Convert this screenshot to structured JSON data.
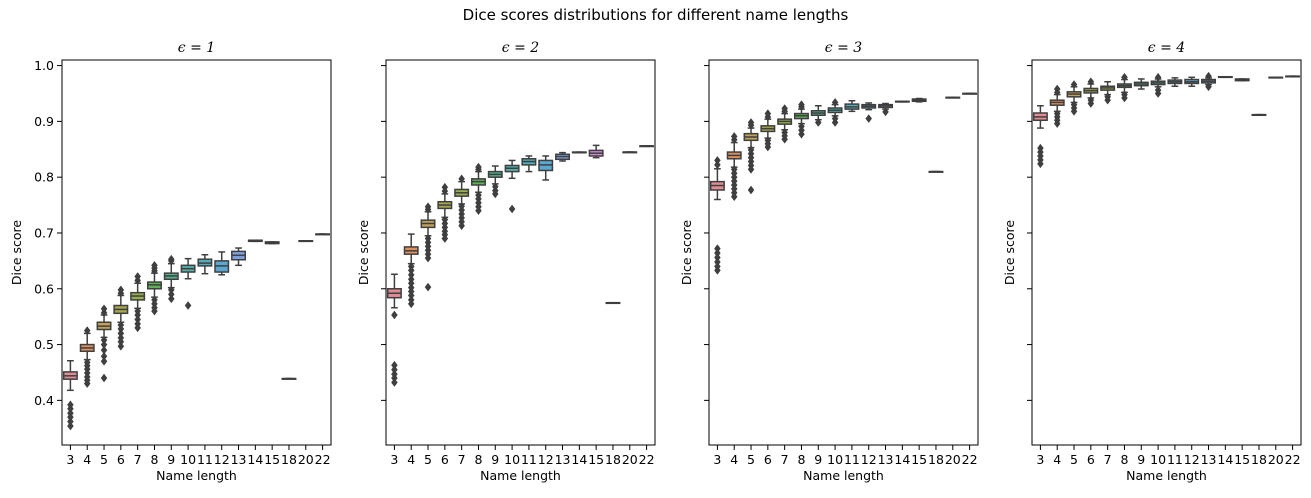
{
  "figure": {
    "suptitle": "Dice scores distributions for different name lengths"
  },
  "chart_data": [
    {
      "type": "box",
      "title": "ϵ = 1",
      "xlabel": "Name length",
      "ylabel": "Dice score",
      "ylim": [
        0.32,
        1.01
      ],
      "yticks": [
        0.4,
        0.5,
        0.6,
        0.7,
        0.8,
        0.9,
        1.0
      ],
      "ytick_labels": [
        "0.4",
        "0.5",
        "0.6",
        "0.7",
        "0.8",
        "0.9",
        "1.0"
      ],
      "show_ytick_labels": true,
      "categories": [
        "3",
        "4",
        "5",
        "6",
        "7",
        "8",
        "9",
        "10",
        "11",
        "12",
        "13",
        "14",
        "15",
        "18",
        "20",
        "22"
      ],
      "boxes": [
        {
          "q1": 0.438,
          "median": 0.444,
          "q3": 0.451,
          "low": 0.418,
          "high": 0.471,
          "outliers": [
            0.392,
            0.385,
            0.377,
            0.37,
            0.362,
            0.354
          ]
        },
        {
          "q1": 0.488,
          "median": 0.494,
          "q3": 0.5,
          "low": 0.473,
          "high": 0.52,
          "outliers": [
            0.468,
            0.462,
            0.456,
            0.449,
            0.442,
            0.436,
            0.43,
            0.525
          ]
        },
        {
          "q1": 0.527,
          "median": 0.533,
          "q3": 0.54,
          "low": 0.513,
          "high": 0.553,
          "outliers": [
            0.508,
            0.5,
            0.49,
            0.479,
            0.47,
            0.44,
            0.557,
            0.564
          ]
        },
        {
          "q1": 0.556,
          "median": 0.563,
          "q3": 0.57,
          "low": 0.54,
          "high": 0.588,
          "outliers": [
            0.535,
            0.528,
            0.52,
            0.512,
            0.505,
            0.497,
            0.592,
            0.598
          ]
        },
        {
          "q1": 0.58,
          "median": 0.587,
          "q3": 0.593,
          "low": 0.565,
          "high": 0.61,
          "outliers": [
            0.56,
            0.553,
            0.545,
            0.537,
            0.53,
            0.615,
            0.622
          ]
        },
        {
          "q1": 0.6,
          "median": 0.607,
          "q3": 0.612,
          "low": 0.585,
          "high": 0.628,
          "outliers": [
            0.58,
            0.573,
            0.566,
            0.56,
            0.632,
            0.637,
            0.642
          ]
        },
        {
          "q1": 0.617,
          "median": 0.623,
          "q3": 0.628,
          "low": 0.602,
          "high": 0.645,
          "outliers": [
            0.598,
            0.59,
            0.582,
            0.65,
            0.653
          ]
        },
        {
          "q1": 0.63,
          "median": 0.636,
          "q3": 0.642,
          "low": 0.618,
          "high": 0.654,
          "outliers": [
            0.57
          ]
        },
        {
          "q1": 0.641,
          "median": 0.646,
          "q3": 0.653,
          "low": 0.627,
          "high": 0.661,
          "outliers": []
        },
        {
          "q1": 0.63,
          "median": 0.641,
          "q3": 0.65,
          "low": 0.625,
          "high": 0.666,
          "outliers": []
        },
        {
          "q1": 0.652,
          "median": 0.66,
          "q3": 0.667,
          "low": 0.642,
          "high": 0.673,
          "outliers": []
        },
        {
          "q1": 0.685,
          "median": 0.686,
          "q3": 0.687,
          "low": 0.685,
          "high": 0.687,
          "outliers": []
        },
        {
          "q1": 0.681,
          "median": 0.682,
          "q3": 0.684,
          "low": 0.681,
          "high": 0.684,
          "outliers": []
        },
        {
          "q1": 0.439,
          "median": 0.439,
          "q3": 0.439,
          "low": 0.439,
          "high": 0.439,
          "outliers": []
        },
        {
          "q1": 0.686,
          "median": 0.686,
          "q3": 0.686,
          "low": 0.686,
          "high": 0.686,
          "outliers": []
        },
        {
          "q1": 0.698,
          "median": 0.698,
          "q3": 0.698,
          "low": 0.698,
          "high": 0.698,
          "outliers": []
        }
      ]
    },
    {
      "type": "box",
      "title": "ϵ = 2",
      "xlabel": "Name length",
      "ylabel": "Dice score",
      "ylim": [
        0.32,
        1.01
      ],
      "yticks": [
        0.4,
        0.5,
        0.6,
        0.7,
        0.8,
        0.9,
        1.0
      ],
      "ytick_labels": [
        "0.4",
        "0.5",
        "0.6",
        "0.7",
        "0.8",
        "0.9",
        "1.0"
      ],
      "show_ytick_labels": false,
      "categories": [
        "3",
        "4",
        "5",
        "6",
        "7",
        "8",
        "9",
        "10",
        "11",
        "12",
        "13",
        "14",
        "15",
        "18",
        "20",
        "22"
      ],
      "boxes": [
        {
          "q1": 0.584,
          "median": 0.592,
          "q3": 0.6,
          "low": 0.566,
          "high": 0.626,
          "outliers": [
            0.553,
            0.463,
            0.455,
            0.447,
            0.44,
            0.432
          ]
        },
        {
          "q1": 0.662,
          "median": 0.668,
          "q3": 0.675,
          "low": 0.645,
          "high": 0.698,
          "outliers": [
            0.64,
            0.633,
            0.625,
            0.617,
            0.61,
            0.602,
            0.595,
            0.588,
            0.58,
            0.573
          ]
        },
        {
          "q1": 0.71,
          "median": 0.717,
          "q3": 0.723,
          "low": 0.695,
          "high": 0.738,
          "outliers": [
            0.69,
            0.683,
            0.676,
            0.669,
            0.662,
            0.655,
            0.603,
            0.742,
            0.747
          ]
        },
        {
          "q1": 0.744,
          "median": 0.75,
          "q3": 0.756,
          "low": 0.728,
          "high": 0.77,
          "outliers": [
            0.724,
            0.717,
            0.71,
            0.703,
            0.697,
            0.69,
            0.775,
            0.782
          ]
        },
        {
          "q1": 0.766,
          "median": 0.772,
          "q3": 0.778,
          "low": 0.752,
          "high": 0.792,
          "outliers": [
            0.748,
            0.741,
            0.734,
            0.727,
            0.72,
            0.713,
            0.797
          ]
        },
        {
          "q1": 0.786,
          "median": 0.792,
          "q3": 0.797,
          "low": 0.773,
          "high": 0.81,
          "outliers": [
            0.768,
            0.761,
            0.754,
            0.747,
            0.74,
            0.814,
            0.818
          ]
        },
        {
          "q1": 0.8,
          "median": 0.805,
          "q3": 0.81,
          "low": 0.788,
          "high": 0.82,
          "outliers": [
            0.783,
            0.776,
            0.77
          ]
        },
        {
          "q1": 0.81,
          "median": 0.816,
          "q3": 0.821,
          "low": 0.798,
          "high": 0.83,
          "outliers": [
            0.743
          ]
        },
        {
          "q1": 0.822,
          "median": 0.828,
          "q3": 0.833,
          "low": 0.81,
          "high": 0.838,
          "outliers": []
        },
        {
          "q1": 0.812,
          "median": 0.822,
          "q3": 0.83,
          "low": 0.795,
          "high": 0.838,
          "outliers": []
        },
        {
          "q1": 0.832,
          "median": 0.837,
          "q3": 0.841,
          "low": 0.829,
          "high": 0.844,
          "outliers": []
        },
        {
          "q1": 0.844,
          "median": 0.844,
          "q3": 0.845,
          "low": 0.844,
          "high": 0.845,
          "outliers": []
        },
        {
          "q1": 0.838,
          "median": 0.843,
          "q3": 0.848,
          "low": 0.835,
          "high": 0.857,
          "outliers": []
        },
        {
          "q1": 0.575,
          "median": 0.575,
          "q3": 0.575,
          "low": 0.575,
          "high": 0.575,
          "outliers": []
        },
        {
          "q1": 0.845,
          "median": 0.845,
          "q3": 0.845,
          "low": 0.845,
          "high": 0.845,
          "outliers": []
        },
        {
          "q1": 0.856,
          "median": 0.856,
          "q3": 0.856,
          "low": 0.856,
          "high": 0.856,
          "outliers": []
        }
      ]
    },
    {
      "type": "box",
      "title": "ϵ = 3",
      "xlabel": "Name length",
      "ylabel": "Dice score",
      "ylim": [
        0.32,
        1.01
      ],
      "yticks": [
        0.4,
        0.5,
        0.6,
        0.7,
        0.8,
        0.9,
        1.0
      ],
      "ytick_labels": [
        "0.4",
        "0.5",
        "0.6",
        "0.7",
        "0.8",
        "0.9",
        "1.0"
      ],
      "show_ytick_labels": false,
      "categories": [
        "3",
        "4",
        "5",
        "6",
        "7",
        "8",
        "9",
        "10",
        "11",
        "12",
        "13",
        "14",
        "15",
        "18",
        "20",
        "22"
      ],
      "boxes": [
        {
          "q1": 0.777,
          "median": 0.785,
          "q3": 0.792,
          "low": 0.76,
          "high": 0.815,
          "outliers": [
            0.822,
            0.83,
            0.672,
            0.664,
            0.656,
            0.648,
            0.64,
            0.633
          ]
        },
        {
          "q1": 0.833,
          "median": 0.839,
          "q3": 0.845,
          "low": 0.818,
          "high": 0.862,
          "outliers": [
            0.814,
            0.807,
            0.8,
            0.793,
            0.786,
            0.779,
            0.772,
            0.765,
            0.867,
            0.873
          ]
        },
        {
          "q1": 0.866,
          "median": 0.872,
          "q3": 0.878,
          "low": 0.853,
          "high": 0.888,
          "outliers": [
            0.849,
            0.842,
            0.835,
            0.828,
            0.821,
            0.814,
            0.777,
            0.893,
            0.898
          ]
        },
        {
          "q1": 0.882,
          "median": 0.887,
          "q3": 0.892,
          "low": 0.87,
          "high": 0.904,
          "outliers": [
            0.866,
            0.86,
            0.854,
            0.908,
            0.914
          ]
        },
        {
          "q1": 0.895,
          "median": 0.9,
          "q3": 0.904,
          "low": 0.885,
          "high": 0.914,
          "outliers": [
            0.88,
            0.874,
            0.868,
            0.918,
            0.923
          ]
        },
        {
          "q1": 0.905,
          "median": 0.91,
          "q3": 0.914,
          "low": 0.896,
          "high": 0.922,
          "outliers": [
            0.891,
            0.884,
            0.877,
            0.926,
            0.93
          ]
        },
        {
          "q1": 0.911,
          "median": 0.915,
          "q3": 0.919,
          "low": 0.903,
          "high": 0.928,
          "outliers": [
            0.898
          ]
        },
        {
          "q1": 0.916,
          "median": 0.92,
          "q3": 0.924,
          "low": 0.91,
          "high": 0.93,
          "outliers": [
            0.905,
            0.898,
            0.934
          ]
        },
        {
          "q1": 0.922,
          "median": 0.926,
          "q3": 0.931,
          "low": 0.918,
          "high": 0.937,
          "outliers": []
        },
        {
          "q1": 0.924,
          "median": 0.927,
          "q3": 0.93,
          "low": 0.921,
          "high": 0.933,
          "outliers": [
            0.905
          ]
        },
        {
          "q1": 0.925,
          "median": 0.928,
          "q3": 0.93,
          "low": 0.922,
          "high": 0.932,
          "outliers": [
            0.917
          ]
        },
        {
          "q1": 0.935,
          "median": 0.935,
          "q3": 0.936,
          "low": 0.935,
          "high": 0.936,
          "outliers": []
        },
        {
          "q1": 0.936,
          "median": 0.938,
          "q3": 0.94,
          "low": 0.935,
          "high": 0.941,
          "outliers": []
        },
        {
          "q1": 0.81,
          "median": 0.81,
          "q3": 0.81,
          "low": 0.81,
          "high": 0.81,
          "outliers": []
        },
        {
          "q1": 0.943,
          "median": 0.943,
          "q3": 0.943,
          "low": 0.943,
          "high": 0.943,
          "outliers": []
        },
        {
          "q1": 0.95,
          "median": 0.95,
          "q3": 0.95,
          "low": 0.95,
          "high": 0.95,
          "outliers": []
        }
      ]
    },
    {
      "type": "box",
      "title": "ϵ = 4",
      "xlabel": "Name length",
      "ylabel": "Dice score",
      "ylim": [
        0.32,
        1.01
      ],
      "yticks": [
        0.4,
        0.5,
        0.6,
        0.7,
        0.8,
        0.9,
        1.0
      ],
      "ytick_labels": [
        "0.4",
        "0.5",
        "0.6",
        "0.7",
        "0.8",
        "0.9",
        "1.0"
      ],
      "show_ytick_labels": false,
      "categories": [
        "3",
        "4",
        "5",
        "6",
        "7",
        "8",
        "9",
        "10",
        "11",
        "12",
        "13",
        "14",
        "15",
        "18",
        "20",
        "22"
      ],
      "boxes": [
        {
          "q1": 0.902,
          "median": 0.908,
          "q3": 0.915,
          "low": 0.888,
          "high": 0.928,
          "outliers": [
            0.852,
            0.845,
            0.838,
            0.831,
            0.824
          ]
        },
        {
          "q1": 0.929,
          "median": 0.934,
          "q3": 0.938,
          "low": 0.918,
          "high": 0.948,
          "outliers": [
            0.914,
            0.908,
            0.902,
            0.896,
            0.952,
            0.958
          ]
        },
        {
          "q1": 0.944,
          "median": 0.949,
          "q3": 0.953,
          "low": 0.934,
          "high": 0.962,
          "outliers": [
            0.93,
            0.924,
            0.918,
            0.966
          ]
        },
        {
          "q1": 0.951,
          "median": 0.955,
          "q3": 0.959,
          "low": 0.942,
          "high": 0.967,
          "outliers": [
            0.938,
            0.932,
            0.971
          ]
        },
        {
          "q1": 0.956,
          "median": 0.96,
          "q3": 0.963,
          "low": 0.948,
          "high": 0.971,
          "outliers": [
            0.944,
            0.938
          ]
        },
        {
          "q1": 0.961,
          "median": 0.964,
          "q3": 0.967,
          "low": 0.952,
          "high": 0.975,
          "outliers": [
            0.948,
            0.942,
            0.979
          ]
        },
        {
          "q1": 0.964,
          "median": 0.967,
          "q3": 0.97,
          "low": 0.958,
          "high": 0.976,
          "outliers": []
        },
        {
          "q1": 0.966,
          "median": 0.969,
          "q3": 0.972,
          "low": 0.962,
          "high": 0.976,
          "outliers": [
            0.956,
            0.95,
            0.979
          ]
        },
        {
          "q1": 0.968,
          "median": 0.971,
          "q3": 0.974,
          "low": 0.963,
          "high": 0.978,
          "outliers": []
        },
        {
          "q1": 0.968,
          "median": 0.971,
          "q3": 0.975,
          "low": 0.963,
          "high": 0.979,
          "outliers": []
        },
        {
          "q1": 0.969,
          "median": 0.972,
          "q3": 0.975,
          "low": 0.966,
          "high": 0.978,
          "outliers": [
            0.962,
            0.981
          ]
        },
        {
          "q1": 0.979,
          "median": 0.98,
          "q3": 0.98,
          "low": 0.979,
          "high": 0.98,
          "outliers": []
        },
        {
          "q1": 0.973,
          "median": 0.974,
          "q3": 0.976,
          "low": 0.973,
          "high": 0.976,
          "outliers": []
        },
        {
          "q1": 0.912,
          "median": 0.912,
          "q3": 0.912,
          "low": 0.912,
          "high": 0.912,
          "outliers": []
        },
        {
          "q1": 0.979,
          "median": 0.979,
          "q3": 0.979,
          "low": 0.979,
          "high": 0.979,
          "outliers": []
        },
        {
          "q1": 0.981,
          "median": 0.981,
          "q3": 0.981,
          "low": 0.981,
          "high": 0.981,
          "outliers": []
        }
      ]
    }
  ],
  "palette": [
    "#e08c95",
    "#dd8f5e",
    "#c0a05a",
    "#a8a64f",
    "#96ae4f",
    "#5fb258",
    "#56b18e",
    "#52b0a8",
    "#52aebd",
    "#5aa7d1",
    "#7f9fe0",
    "#ab8ee0",
    "#d38bd9",
    "#e58dbf",
    "#e894a6",
    "#de8f80"
  ],
  "box_line_color": "#3f3f3f"
}
